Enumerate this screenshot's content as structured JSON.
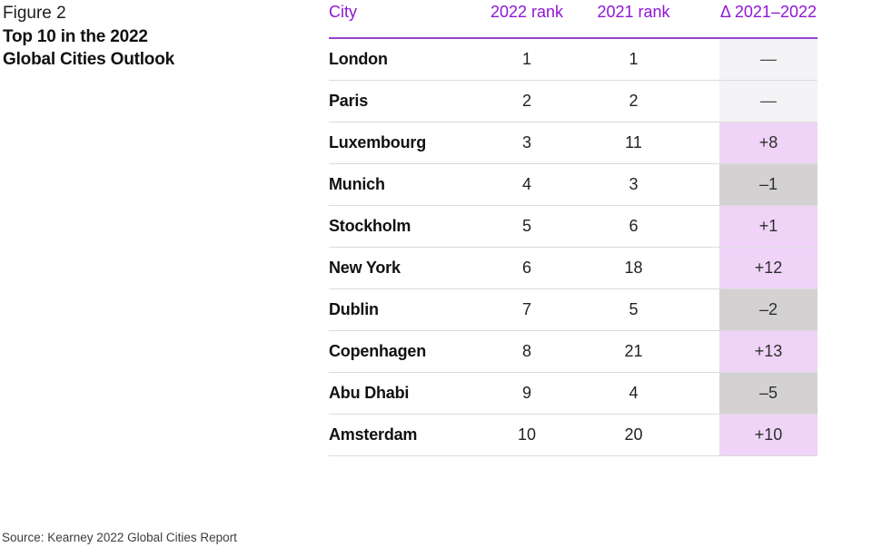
{
  "figure": {
    "label": "Figure 2",
    "title_line1": "Top 10 in the 2022",
    "title_line2": "Global Cities Outlook"
  },
  "source": "Source: Kearney 2022 Global Cities Report",
  "colors": {
    "header_text": "#8e17d6",
    "header_rule": "#9a41ce",
    "delta_up_bg": "#f0d4f8",
    "delta_down_bg": "#d3d1d2",
    "delta_neutral_bg": "#f4f3f5",
    "row_divider": "#dbdbdb"
  },
  "chart_data": {
    "type": "table",
    "figure_label": "Figure 2",
    "title": "Top 10 in the 2022 Global Cities Outlook",
    "columns": [
      "City",
      "2022 rank",
      "2021 rank",
      "Δ 2021–2022"
    ],
    "rows": [
      {
        "city": "London",
        "rank_2022": 1,
        "rank_2021": 1,
        "delta": "—",
        "direction": "none"
      },
      {
        "city": "Paris",
        "rank_2022": 2,
        "rank_2021": 2,
        "delta": "—",
        "direction": "none"
      },
      {
        "city": "Luxembourg",
        "rank_2022": 3,
        "rank_2021": 11,
        "delta": "+8",
        "direction": "up"
      },
      {
        "city": "Munich",
        "rank_2022": 4,
        "rank_2021": 3,
        "delta": "–1",
        "direction": "down"
      },
      {
        "city": "Stockholm",
        "rank_2022": 5,
        "rank_2021": 6,
        "delta": "+1",
        "direction": "up"
      },
      {
        "city": "New York",
        "rank_2022": 6,
        "rank_2021": 18,
        "delta": "+12",
        "direction": "up"
      },
      {
        "city": "Dublin",
        "rank_2022": 7,
        "rank_2021": 5,
        "delta": "–2",
        "direction": "down"
      },
      {
        "city": "Copenhagen",
        "rank_2022": 8,
        "rank_2021": 21,
        "delta": "+13",
        "direction": "up"
      },
      {
        "city": "Abu Dhabi",
        "rank_2022": 9,
        "rank_2021": 4,
        "delta": "–5",
        "direction": "down"
      },
      {
        "city": "Amsterdam",
        "rank_2022": 10,
        "rank_2021": 20,
        "delta": "+10",
        "direction": "up"
      }
    ],
    "source": "Source: Kearney 2022 Global Cities Report"
  }
}
